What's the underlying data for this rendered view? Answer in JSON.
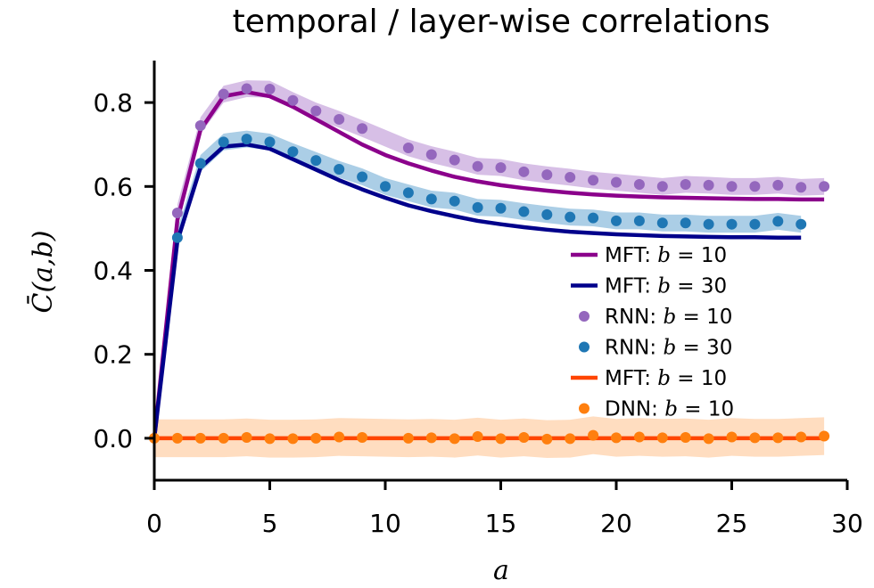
{
  "chart_data": {
    "type": "line",
    "title": "temporal / layer-wise correlations",
    "xlabel": "a",
    "ylabel": "C̄(a,b)",
    "xlim": [
      0,
      30
    ],
    "ylim": [
      -0.1,
      0.9
    ],
    "xticks": [
      0,
      5,
      10,
      15,
      20,
      25,
      30
    ],
    "yticks": [
      0.0,
      0.2,
      0.4,
      0.6,
      0.8
    ],
    "xtick_labels": [
      "0",
      "5",
      "10",
      "15",
      "20",
      "25",
      "30"
    ],
    "ytick_labels": [
      "0.0",
      "0.2",
      "0.4",
      "0.6",
      "0.8"
    ],
    "legend_position": "center-right",
    "grid": false,
    "series": [
      {
        "name": "MFT: b = 10",
        "legend_prefix": "MFT:",
        "legend_param": "b = 10",
        "kind": "line",
        "color": "#8b008b",
        "x": [
          0,
          1,
          2,
          3,
          4,
          5,
          6,
          7,
          8,
          9,
          10,
          11,
          12,
          13,
          14,
          15,
          16,
          17,
          18,
          19,
          20,
          21,
          22,
          23,
          24,
          25,
          26,
          27,
          28,
          29
        ],
        "y": [
          0.0,
          0.52,
          0.735,
          0.815,
          0.825,
          0.815,
          0.79,
          0.76,
          0.73,
          0.7,
          0.675,
          0.655,
          0.638,
          0.623,
          0.612,
          0.603,
          0.596,
          0.59,
          0.585,
          0.581,
          0.578,
          0.576,
          0.574,
          0.573,
          0.572,
          0.571,
          0.57,
          0.57,
          0.569,
          0.569
        ]
      },
      {
        "name": "MFT: b = 30",
        "legend_prefix": "MFT:",
        "legend_param": "b = 30",
        "kind": "line",
        "color": "#00008b",
        "x": [
          0,
          1,
          2,
          3,
          4,
          5,
          6,
          7,
          8,
          9,
          10,
          11,
          12,
          13,
          14,
          15,
          16,
          17,
          18,
          19,
          20,
          21,
          22,
          23,
          24,
          25,
          26,
          27,
          28
        ],
        "y": [
          0.0,
          0.47,
          0.645,
          0.695,
          0.7,
          0.69,
          0.665,
          0.64,
          0.615,
          0.593,
          0.573,
          0.555,
          0.541,
          0.529,
          0.518,
          0.51,
          0.503,
          0.497,
          0.492,
          0.489,
          0.486,
          0.484,
          0.482,
          0.481,
          0.48,
          0.479,
          0.479,
          0.478,
          0.478
        ]
      },
      {
        "name": "RNN: b = 10",
        "legend_prefix": "RNN:",
        "legend_param": "b = 10",
        "kind": "scatter",
        "color": "#9467bd",
        "band_color": "#c9a9dd",
        "x": [
          1,
          2,
          3,
          4,
          5,
          6,
          7,
          8,
          9,
          11,
          12,
          13,
          14,
          15,
          16,
          17,
          18,
          19,
          20,
          21,
          22,
          23,
          24,
          25,
          26,
          27,
          28,
          29
        ],
        "y": [
          0.537,
          0.745,
          0.82,
          0.833,
          0.832,
          0.805,
          0.78,
          0.76,
          0.738,
          0.692,
          0.676,
          0.663,
          0.648,
          0.645,
          0.635,
          0.628,
          0.622,
          0.615,
          0.61,
          0.605,
          0.6,
          0.605,
          0.603,
          0.6,
          0.6,
          0.603,
          0.598,
          0.6
        ],
        "band": 0.02
      },
      {
        "name": "RNN: b = 30",
        "legend_prefix": "RNN:",
        "legend_param": "b = 30",
        "kind": "scatter",
        "color": "#1f77b4",
        "band_color": "#8fbedd",
        "x": [
          1,
          2,
          3,
          4,
          5,
          6,
          7,
          8,
          9,
          10,
          11,
          12,
          13,
          14,
          15,
          16,
          17,
          18,
          19,
          20,
          21,
          22,
          23,
          24,
          25,
          26,
          27,
          28
        ],
        "y": [
          0.478,
          0.655,
          0.706,
          0.713,
          0.706,
          0.683,
          0.662,
          0.641,
          0.623,
          0.6,
          0.585,
          0.57,
          0.565,
          0.55,
          0.548,
          0.54,
          0.533,
          0.527,
          0.525,
          0.518,
          0.518,
          0.513,
          0.513,
          0.51,
          0.51,
          0.51,
          0.517,
          0.51
        ],
        "band": 0.02
      },
      {
        "name": "MFT: b = 10",
        "legend_prefix": "MFT:",
        "legend_param": "b = 10",
        "kind": "line",
        "color": "#ff4500",
        "x": [
          0,
          29
        ],
        "y": [
          0.0,
          0.0
        ]
      },
      {
        "name": "DNN: b = 10",
        "legend_prefix": "DNN:",
        "legend_param": "b = 10",
        "kind": "scatter",
        "color": "#ff7f0e",
        "band_color": "#ffd2ab",
        "x": [
          0,
          1,
          2,
          3,
          4,
          5,
          6,
          7,
          8,
          9,
          11,
          12,
          13,
          14,
          15,
          16,
          17,
          18,
          19,
          20,
          21,
          22,
          23,
          24,
          25,
          26,
          27,
          28,
          29
        ],
        "y": [
          0.0,
          0.0,
          0.0,
          0.0,
          0.002,
          -0.001,
          -0.001,
          0.0,
          0.003,
          0.002,
          0.0,
          0.001,
          -0.001,
          0.004,
          -0.001,
          0.002,
          -0.002,
          -0.001,
          0.007,
          0.001,
          0.003,
          0.001,
          0.002,
          -0.001,
          0.003,
          0.001,
          0.001,
          0.003,
          0.005
        ],
        "band": 0.045
      }
    ]
  }
}
